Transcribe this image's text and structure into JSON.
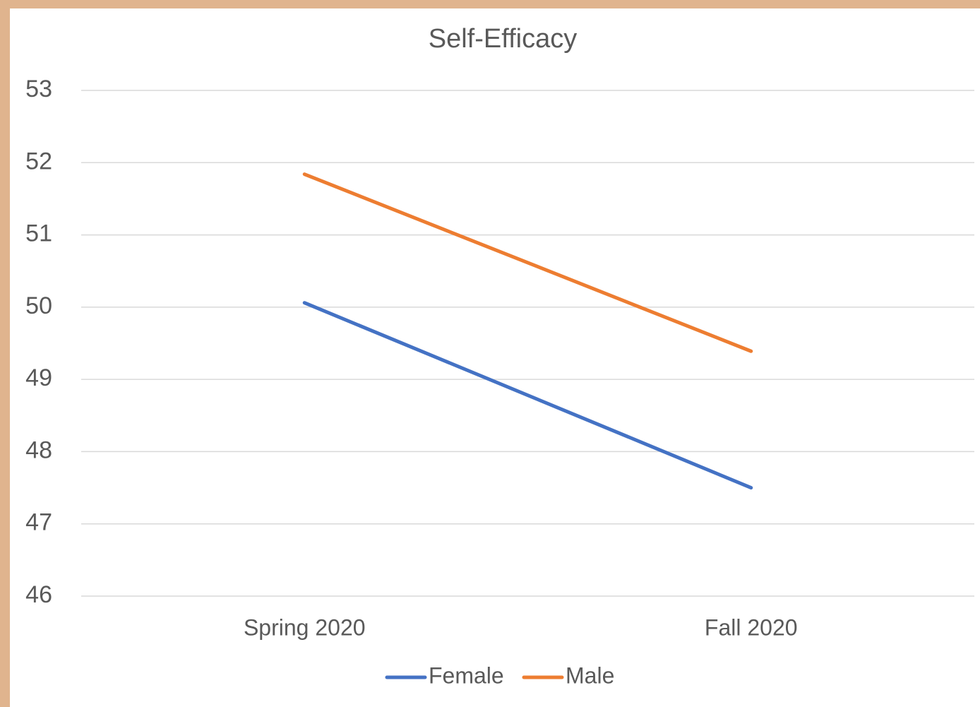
{
  "chart_data": {
    "type": "line",
    "title": "Self-Efficacy",
    "categories": [
      "Spring 2020",
      "Fall 2020"
    ],
    "series": [
      {
        "name": "Female",
        "color": "#4472c4",
        "values": [
          50.06,
          47.5
        ]
      },
      {
        "name": "Male",
        "color": "#ed7d31",
        "values": [
          51.84,
          49.39
        ]
      }
    ],
    "ylim": [
      46,
      53
    ],
    "yticks": [
      46,
      47,
      48,
      49,
      50,
      51,
      52,
      53
    ],
    "grid": true,
    "legend": "bottom"
  }
}
